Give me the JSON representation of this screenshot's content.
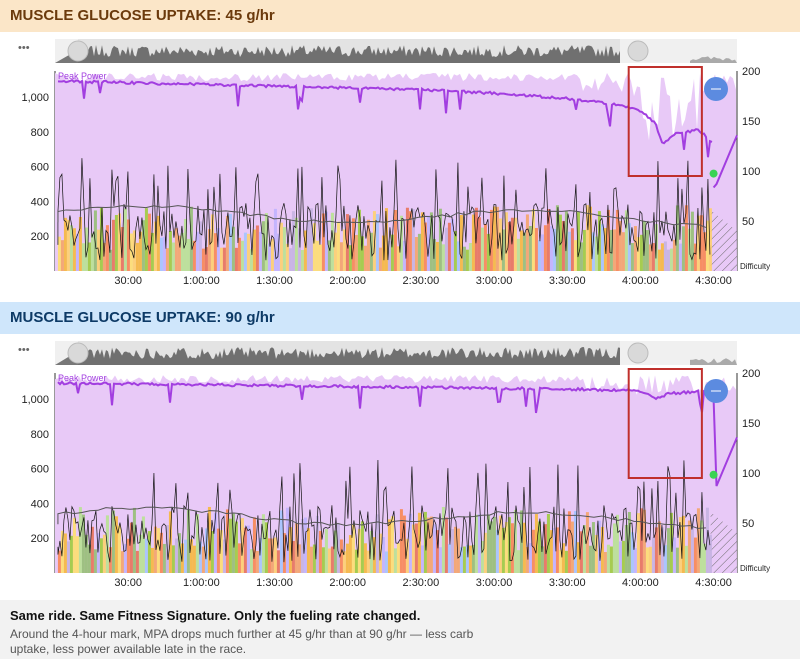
{
  "panels": [
    {
      "title": "MUSCLE GLUCOSE UPTAKE: 45 g/hr",
      "theme": "#6b3a0c",
      "variant": "45"
    },
    {
      "title": "MUSCLE GLUCOSE UPTAKE: 90 g/hr",
      "theme": "#0d3a66",
      "variant": "90"
    }
  ],
  "more_label": "•••",
  "footer": {
    "title": "Same ride. Same Fitness Signature. Only the fueling rate changed.",
    "body": "Around the 4-hour mark, MPA drops much further at 45 g/hr than at 90 g/hr — less carb uptake, less power available late in the race."
  },
  "chart_data": [
    {
      "type": "area",
      "title": "MUSCLE GLUCOSE UPTAKE: 45 g/hr",
      "series": [
        {
          "name": "Peak Power",
          "note": "MPA line"
        }
      ],
      "x_ticks": [
        "30:00",
        "1:00:00",
        "1:30:00",
        "2:00:00",
        "2:30:00",
        "3:00:00",
        "3:30:00",
        "4:00:00",
        "4:30:00"
      ],
      "y_left_ticks": [
        "200",
        "400",
        "600",
        "800",
        "1,000"
      ],
      "y_left_range": [
        0,
        1150
      ],
      "y_right_ticks": [
        "50",
        "100",
        "150",
        "200"
      ],
      "y_right_label": "Difficulty",
      "mpa_profile": [
        [
          0,
          1100
        ],
        [
          0.5,
          1090
        ],
        [
          1.0,
          1080
        ],
        [
          1.5,
          1070
        ],
        [
          2.0,
          1060
        ],
        [
          2.5,
          1050
        ],
        [
          3.0,
          1030
        ],
        [
          3.5,
          1000
        ],
        [
          3.8,
          970
        ],
        [
          4.0,
          930
        ],
        [
          4.1,
          860
        ],
        [
          4.15,
          740
        ],
        [
          4.25,
          800
        ],
        [
          4.4,
          820
        ],
        [
          4.6,
          650
        ]
      ],
      "highlight": "around 4:00:00"
    },
    {
      "type": "area",
      "title": "MUSCLE GLUCOSE UPTAKE: 90 g/hr",
      "series": [
        {
          "name": "Peak Power",
          "note": "MPA line"
        }
      ],
      "x_ticks": [
        "30:00",
        "1:00:00",
        "1:30:00",
        "2:00:00",
        "2:30:00",
        "3:00:00",
        "3:30:00",
        "4:00:00",
        "4:30:00"
      ],
      "y_left_ticks": [
        "200",
        "400",
        "600",
        "800",
        "1,000"
      ],
      "y_left_range": [
        0,
        1150
      ],
      "y_right_ticks": [
        "50",
        "100",
        "150",
        "200"
      ],
      "y_right_label": "Difficulty",
      "mpa_profile": [
        [
          0,
          1100
        ],
        [
          0.5,
          1095
        ],
        [
          1.0,
          1090
        ],
        [
          1.5,
          1085
        ],
        [
          2.0,
          1080
        ],
        [
          2.5,
          1075
        ],
        [
          3.0,
          1070
        ],
        [
          3.5,
          1065
        ],
        [
          4.0,
          1055
        ],
        [
          4.1,
          1010
        ],
        [
          4.2,
          1040
        ],
        [
          4.4,
          1050
        ],
        [
          4.6,
          1030
        ]
      ],
      "highlight": "around 4:00:00"
    }
  ]
}
